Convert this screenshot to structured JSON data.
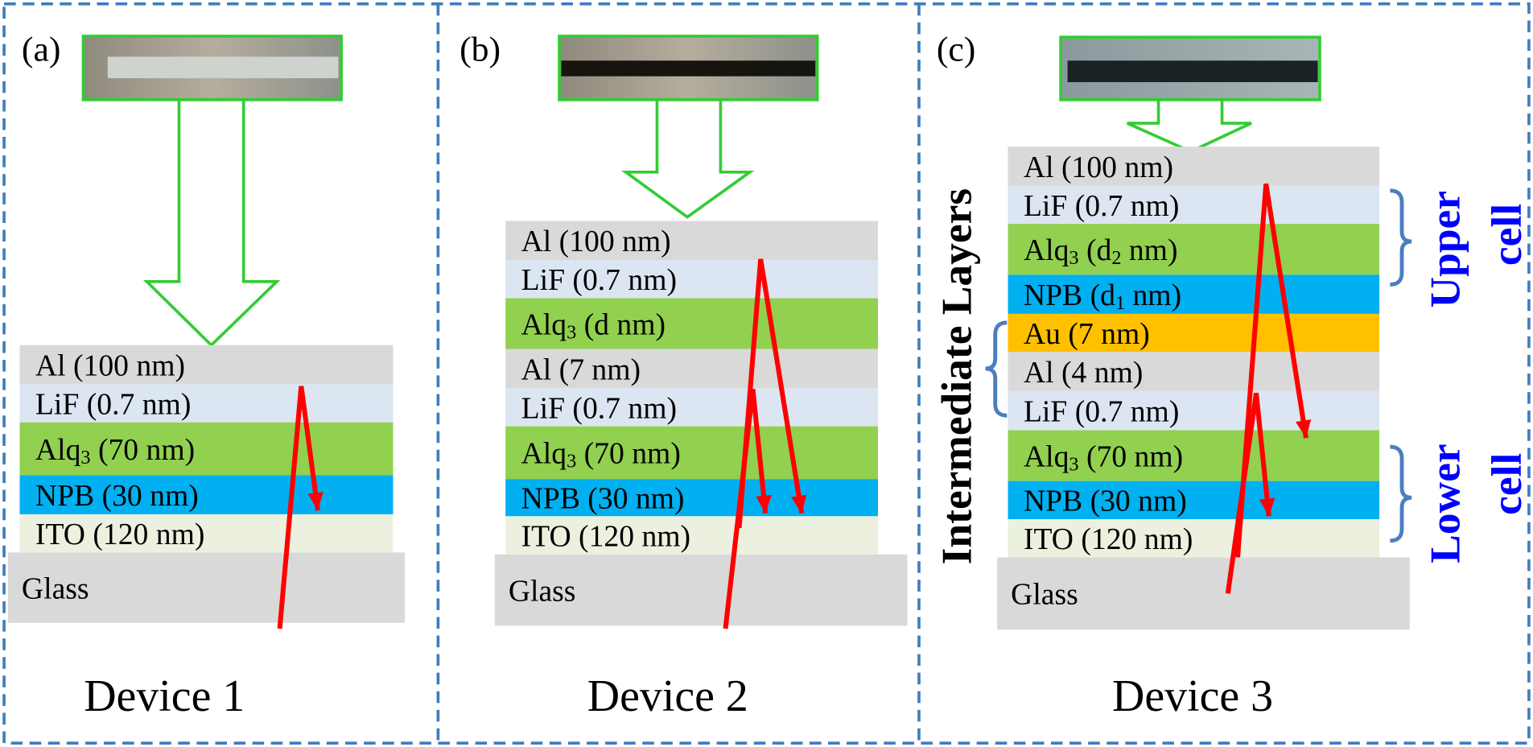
{
  "panels": [
    {
      "tag": "(a)",
      "caption": "Device 1",
      "substrate": "Glass",
      "layers": [
        {
          "text": [
            "Al (100 nm)"
          ]
        },
        {
          "text": [
            "LiF (0.7 nm)"
          ]
        },
        {
          "text": [
            "Alq",
            "3",
            " (70 nm)"
          ]
        },
        {
          "text": [
            "NPB (30 nm)"
          ]
        },
        {
          "text": [
            "ITO (120 nm)"
          ]
        }
      ]
    },
    {
      "tag": "(b)",
      "caption": "Device 2",
      "substrate": "Glass",
      "layers": [
        {
          "text": [
            "Al (100 nm)"
          ]
        },
        {
          "text": [
            "LiF (0.7 nm)"
          ]
        },
        {
          "text": [
            "Alq",
            "3",
            " (d nm)"
          ]
        },
        {
          "text": [
            "Al (7 nm)"
          ]
        },
        {
          "text": [
            "LiF (0.7 nm)"
          ]
        },
        {
          "text": [
            "Alq",
            "3",
            " (70 nm)"
          ]
        },
        {
          "text": [
            "NPB (30 nm)"
          ]
        },
        {
          "text": [
            "ITO (120 nm)"
          ]
        }
      ]
    },
    {
      "tag": "(c)",
      "caption": "Device 3",
      "substrate": "Glass",
      "layers": [
        {
          "text": [
            "Al (100 nm)"
          ]
        },
        {
          "text": [
            "LiF (0.7 nm)"
          ]
        },
        {
          "text": [
            "Alq",
            "3",
            " (d",
            "2",
            " nm)"
          ]
        },
        {
          "text": [
            "NPB (d",
            "1",
            " nm)"
          ]
        },
        {
          "text": [
            "Au (7 nm)"
          ]
        },
        {
          "text": [
            "Al (4 nm)"
          ]
        },
        {
          "text": [
            "LiF (0.7 nm)"
          ]
        },
        {
          "text": [
            "Alq",
            "3",
            " (70 nm)"
          ]
        },
        {
          "text": [
            "NPB (30 nm)"
          ]
        },
        {
          "text": [
            "ITO (120 nm)"
          ]
        }
      ]
    }
  ],
  "groups": {
    "intermediate": "Intermediate Layers",
    "upper": [
      "Upper",
      "cell"
    ],
    "lower": [
      "Lower",
      "cell"
    ]
  }
}
